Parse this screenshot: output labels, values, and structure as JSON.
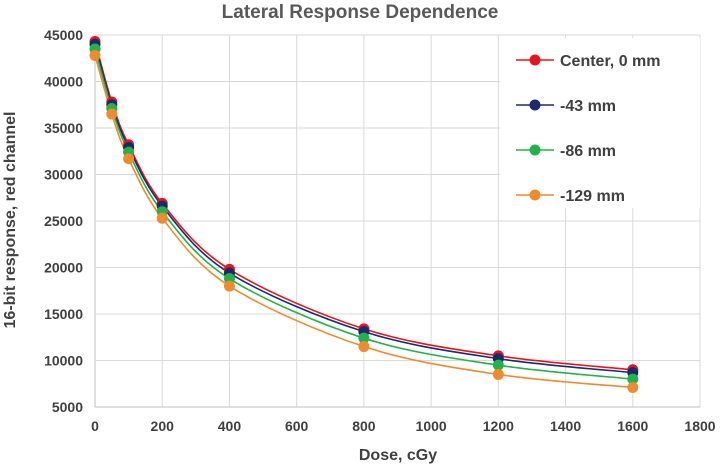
{
  "chart_data": {
    "type": "line",
    "title": "Lateral Response Dependence",
    "xlabel": "Dose, cGy",
    "ylabel": "16-bit response, red channel",
    "xlim": [
      0,
      1800
    ],
    "ylim": [
      5000,
      45000
    ],
    "x_ticks": [
      0,
      200,
      400,
      600,
      800,
      1000,
      1200,
      1400,
      1600,
      1800
    ],
    "y_ticks": [
      5000,
      10000,
      15000,
      20000,
      25000,
      30000,
      35000,
      40000,
      45000
    ],
    "grid": true,
    "legend_position": "top-right",
    "x": [
      0,
      50,
      100,
      200,
      400,
      800,
      1200,
      1600
    ],
    "series": [
      {
        "name": "Center, 0 mm",
        "color": "#e8141c",
        "values": [
          44300,
          37800,
          33200,
          26900,
          19800,
          13400,
          10500,
          9000
        ]
      },
      {
        "name": "-43 mm",
        "color": "#1a2a6c",
        "values": [
          44000,
          37500,
          32900,
          26600,
          19400,
          13100,
          10200,
          8700
        ]
      },
      {
        "name": "-86 mm",
        "color": "#21b24b",
        "values": [
          43500,
          37100,
          32400,
          26000,
          18800,
          12400,
          9500,
          8000
        ]
      },
      {
        "name": "-129 mm",
        "color": "#f08a2e",
        "values": [
          42800,
          36500,
          31700,
          25300,
          18000,
          11500,
          8500,
          7100
        ]
      }
    ]
  }
}
